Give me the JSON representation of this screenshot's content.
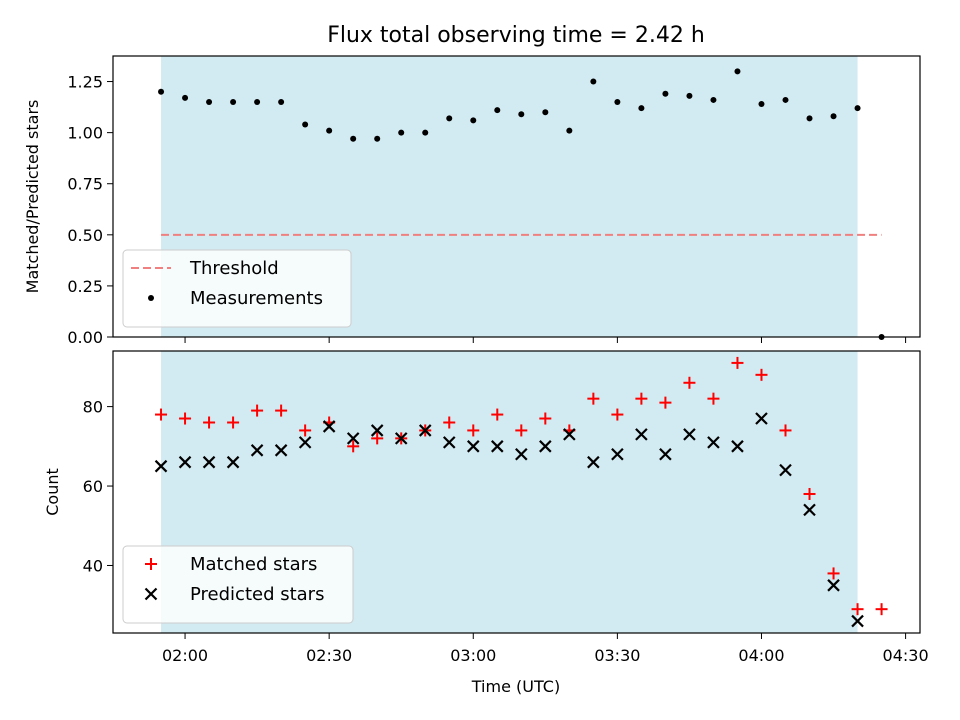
{
  "chart_data": {
    "title": "Flux total observing time = 2.42 h",
    "xlabel": "Time (UTC)",
    "x_tick_labels": [
      "02:00",
      "02:30",
      "03:00",
      "03:30",
      "04:00",
      "04:30"
    ],
    "shaded_color": "#add8e6",
    "panels": [
      {
        "type": "scatter",
        "ylabel": "Matched/Predicted stars",
        "ylim": [
          0.0,
          1.375
        ],
        "yticks": [
          "0.00",
          "0.25",
          "0.50",
          "0.75",
          "1.00",
          "1.25"
        ],
        "shaded_span": [
          "01:55",
          "04:20"
        ],
        "threshold": {
          "name": "Threshold",
          "value": 0.5,
          "x_range": [
            "01:55",
            "04:25"
          ],
          "color": "#f08080"
        },
        "series": [
          {
            "name": "Measurements",
            "marker": "dot",
            "color": "#000000",
            "x": [
              "01:55",
              "02:00",
              "02:05",
              "02:10",
              "02:15",
              "02:20",
              "02:25",
              "02:30",
              "02:35",
              "02:40",
              "02:45",
              "02:50",
              "02:55",
              "03:00",
              "03:05",
              "03:10",
              "03:15",
              "03:20",
              "03:25",
              "03:30",
              "03:35",
              "03:40",
              "03:45",
              "03:50",
              "03:55",
              "04:00",
              "04:05",
              "04:10",
              "04:15",
              "04:20",
              "04:25"
            ],
            "y": [
              1.2,
              1.17,
              1.15,
              1.15,
              1.15,
              1.15,
              1.04,
              1.01,
              0.97,
              0.97,
              1.0,
              1.0,
              1.07,
              1.06,
              1.11,
              1.09,
              1.1,
              1.01,
              1.25,
              1.15,
              1.12,
              1.19,
              1.18,
              1.16,
              1.3,
              1.14,
              1.16,
              1.07,
              1.08,
              1.12,
              0.0
            ]
          }
        ],
        "legend": [
          "Threshold",
          "Measurements"
        ],
        "legend_position": "lower-left"
      },
      {
        "type": "scatter",
        "ylabel": "Count",
        "ylim": [
          23,
          94
        ],
        "yticks": [
          "40",
          "60",
          "80"
        ],
        "shaded_span": [
          "01:55",
          "04:20"
        ],
        "series": [
          {
            "name": "Matched stars",
            "marker": "plus",
            "color": "#ff0000",
            "x": [
              "01:55",
              "02:00",
              "02:05",
              "02:10",
              "02:15",
              "02:20",
              "02:25",
              "02:30",
              "02:35",
              "02:40",
              "02:45",
              "02:50",
              "02:55",
              "03:00",
              "03:05",
              "03:10",
              "03:15",
              "03:20",
              "03:25",
              "03:30",
              "03:35",
              "03:40",
              "03:45",
              "03:50",
              "03:55",
              "04:00",
              "04:05",
              "04:10",
              "04:15",
              "04:20",
              "04:25"
            ],
            "y": [
              78,
              77,
              76,
              76,
              79,
              79,
              74,
              76,
              70,
              72,
              72,
              74,
              76,
              74,
              78,
              74,
              77,
              74,
              82,
              78,
              82,
              81,
              86,
              82,
              91,
              88,
              74,
              58,
              38,
              29,
              29
            ]
          },
          {
            "name": "Predicted stars",
            "marker": "x",
            "color": "#000000",
            "x": [
              "01:55",
              "02:00",
              "02:05",
              "02:10",
              "02:15",
              "02:20",
              "02:25",
              "02:30",
              "02:35",
              "02:40",
              "02:45",
              "02:50",
              "02:55",
              "03:00",
              "03:05",
              "03:10",
              "03:15",
              "03:20",
              "03:25",
              "03:30",
              "03:35",
              "03:40",
              "03:45",
              "03:50",
              "03:55",
              "04:00",
              "04:05",
              "04:10",
              "04:15",
              "04:20"
            ],
            "y": [
              65,
              66,
              66,
              66,
              69,
              69,
              71,
              75,
              72,
              74,
              72,
              74,
              71,
              70,
              70,
              68,
              70,
              73,
              66,
              68,
              73,
              68,
              73,
              71,
              70,
              77,
              64,
              54,
              35,
              26
            ]
          }
        ],
        "legend": [
          "Matched stars",
          "Predicted stars"
        ],
        "legend_position": "lower-left"
      }
    ]
  }
}
